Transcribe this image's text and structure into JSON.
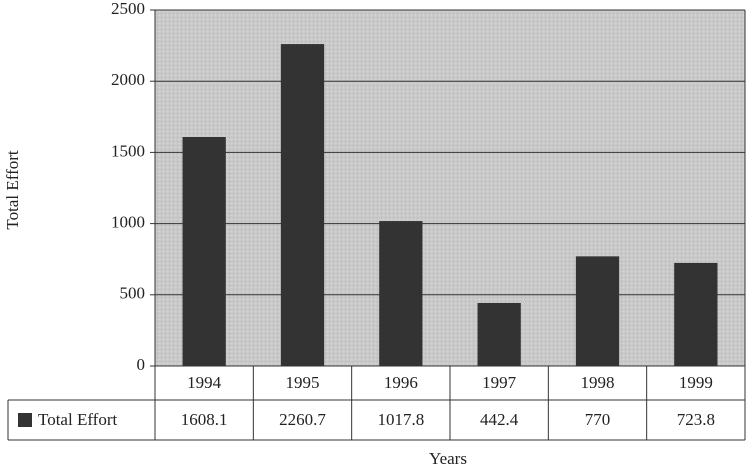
{
  "chart_data": {
    "type": "bar",
    "y_label": "Total Effort",
    "x_label": "Years",
    "categories": [
      "1994",
      "1995",
      "1996",
      "1997",
      "1998",
      "1999"
    ],
    "series": [
      {
        "name": "Total Effort",
        "color": "#333333",
        "values": [
          1608.1,
          2260.7,
          1017.8,
          442.4,
          770,
          723.8
        ]
      }
    ],
    "ylim": [
      0,
      2500
    ],
    "yticks": [
      0,
      500,
      1000,
      1500,
      2000,
      2500
    ],
    "grid": true,
    "data_table": true
  }
}
